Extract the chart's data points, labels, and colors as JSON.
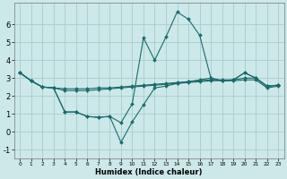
{
  "xlabel": "Humidex (Indice chaleur)",
  "xlim": [
    -0.5,
    23.5
  ],
  "ylim": [
    -1.5,
    7.2
  ],
  "yticks": [
    -1,
    0,
    1,
    2,
    3,
    4,
    5,
    6
  ],
  "xticks": [
    0,
    1,
    2,
    3,
    4,
    5,
    6,
    7,
    8,
    9,
    10,
    11,
    12,
    13,
    14,
    15,
    16,
    17,
    18,
    19,
    20,
    21,
    22,
    23
  ],
  "bg_color": "#cce8e8",
  "grid_color": "#aacccc",
  "line_color": "#1a6b6b",
  "line1_y": [
    3.3,
    2.85,
    2.5,
    2.45,
    1.1,
    1.1,
    0.85,
    0.8,
    0.85,
    0.5,
    1.55,
    5.25,
    4.0,
    5.3,
    6.7,
    6.3,
    5.4,
    3.0,
    2.85,
    2.9,
    3.3,
    3.0,
    2.55,
    2.6
  ],
  "line2_y": [
    3.3,
    2.85,
    2.5,
    2.45,
    1.1,
    1.1,
    0.85,
    0.8,
    0.85,
    -0.6,
    0.55,
    1.5,
    2.45,
    2.55,
    2.7,
    2.8,
    2.9,
    3.0,
    2.85,
    2.9,
    3.3,
    3.0,
    2.55,
    2.6
  ],
  "line3_y": [
    3.3,
    2.85,
    2.5,
    2.45,
    2.4,
    2.4,
    2.4,
    2.45,
    2.45,
    2.5,
    2.55,
    2.6,
    2.65,
    2.7,
    2.75,
    2.8,
    2.85,
    2.9,
    2.9,
    2.9,
    3.0,
    3.0,
    2.55,
    2.6
  ],
  "line4_y": [
    3.3,
    2.85,
    2.5,
    2.45,
    2.3,
    2.3,
    2.3,
    2.35,
    2.4,
    2.45,
    2.5,
    2.55,
    2.6,
    2.65,
    2.7,
    2.75,
    2.8,
    2.85,
    2.85,
    2.85,
    2.9,
    2.9,
    2.45,
    2.55
  ],
  "xlabel_fontsize": 6,
  "ytick_fontsize": 6,
  "xtick_fontsize": 4.2
}
